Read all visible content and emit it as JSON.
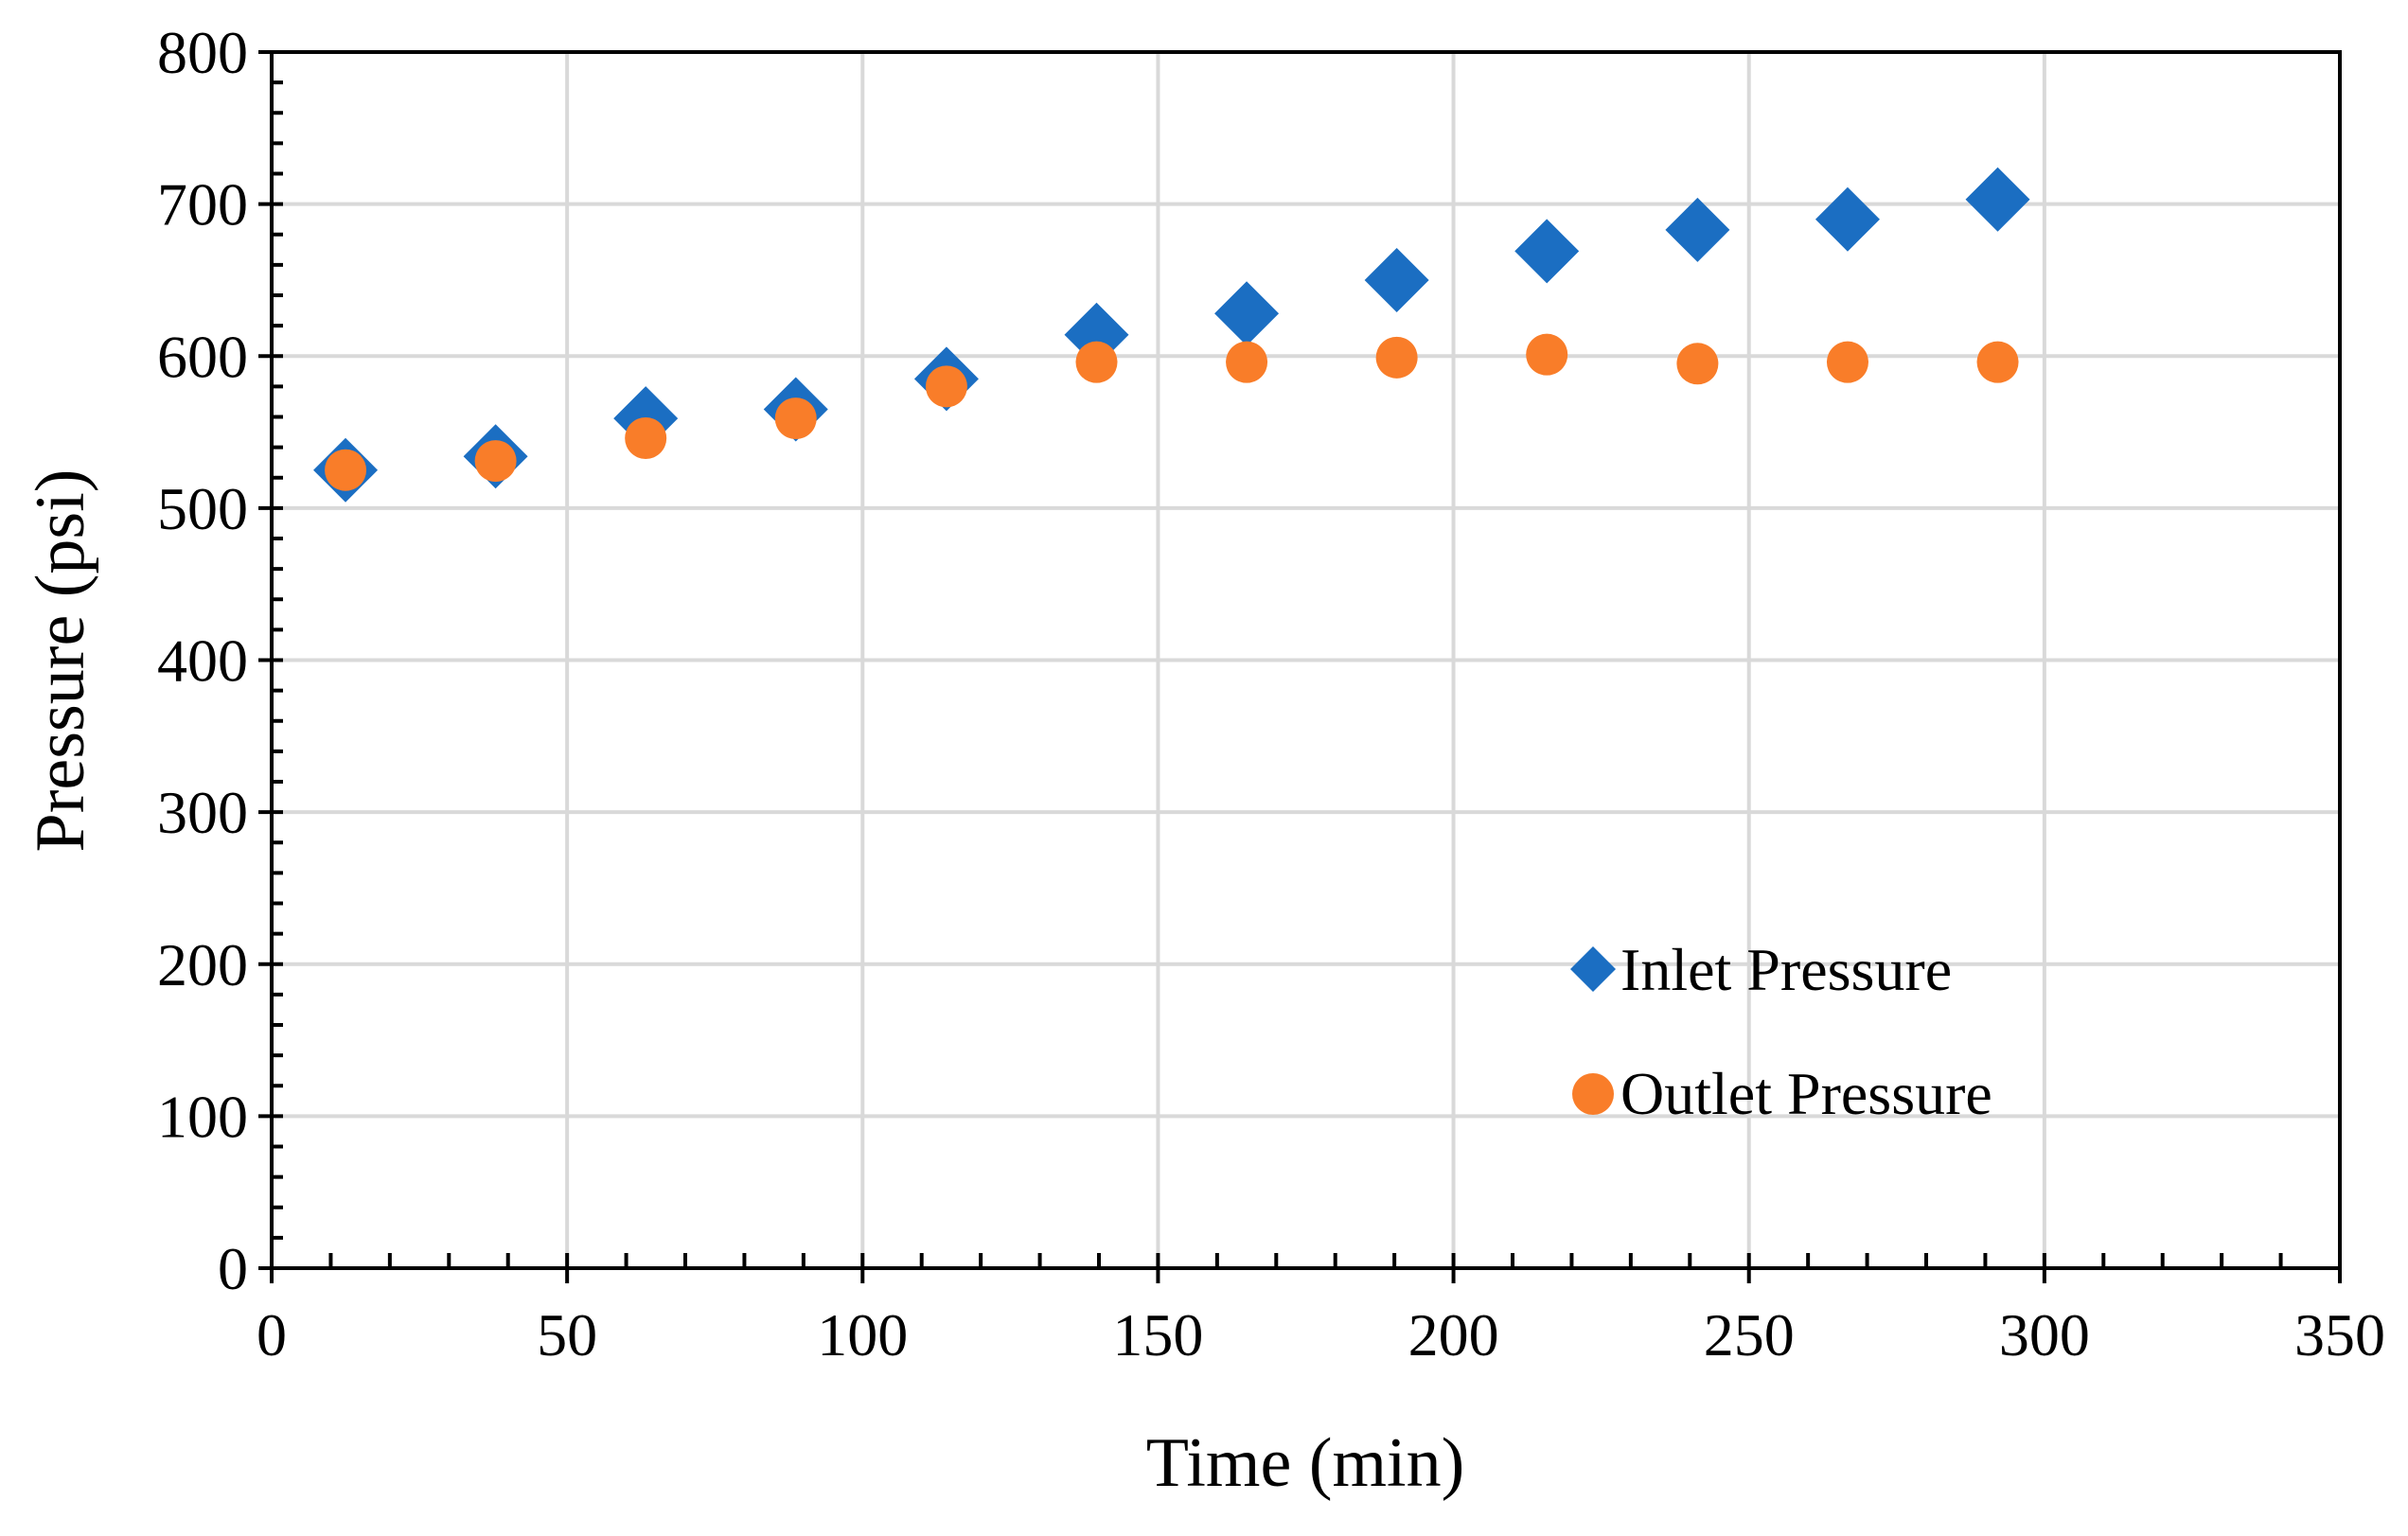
{
  "chart_data": {
    "type": "scatter",
    "title": "",
    "xlabel": "Time (min)",
    "ylabel": "Pressure (psi)",
    "xlim": [
      0,
      350
    ],
    "ylim": [
      0,
      800
    ],
    "x_ticks": [
      0,
      50,
      100,
      150,
      200,
      250,
      300,
      350
    ],
    "y_ticks": [
      0,
      100,
      200,
      300,
      400,
      500,
      600,
      700,
      800
    ],
    "x_minor_step": 10,
    "y_minor_step": 20,
    "grid": true,
    "legend_position": "bottom-right",
    "series": [
      {
        "name": "Inlet Pressure",
        "marker": "diamond",
        "color": "#1b6ec2",
        "x": [
          12.5,
          37.9,
          63.3,
          88.7,
          114.2,
          139.6,
          165.0,
          190.4,
          215.8,
          241.3,
          266.7,
          292.1
        ],
        "values": [
          525,
          534,
          559,
          565,
          585,
          614,
          628,
          650,
          669,
          683,
          690,
          703
        ]
      },
      {
        "name": "Outlet Pressure",
        "marker": "circle",
        "color": "#f97d29",
        "x": [
          12.5,
          37.9,
          63.3,
          88.7,
          114.2,
          139.6,
          165.0,
          190.4,
          215.8,
          241.3,
          266.7,
          292.1
        ],
        "values": [
          525,
          531,
          546,
          559,
          580,
          596,
          596,
          599,
          601,
          595,
          596,
          596
        ]
      }
    ]
  },
  "colors": {
    "grid": "#d9d9d9",
    "axis": "#000000",
    "background": "#ffffff"
  }
}
